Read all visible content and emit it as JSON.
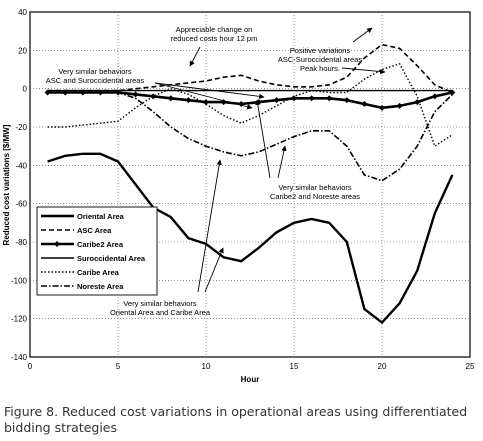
{
  "chart_data": {
    "type": "line",
    "title": "",
    "xlabel": "Hour",
    "ylabel": "Reduced cost variations [$/MW]",
    "xlim": [
      0,
      25
    ],
    "ylim": [
      -140,
      40
    ],
    "xticks": [
      0,
      5,
      10,
      15,
      20,
      25
    ],
    "yticks": [
      40,
      20,
      0,
      -20,
      -40,
      -60,
      -80,
      -100,
      -120,
      -140
    ],
    "grid": true,
    "legend_position": "center-left",
    "x": [
      1,
      2,
      3,
      4,
      5,
      6,
      7,
      8,
      9,
      10,
      11,
      12,
      13,
      14,
      15,
      16,
      17,
      18,
      19,
      20,
      21,
      22,
      23,
      24
    ],
    "series": [
      {
        "name": "Oriental Area",
        "style": "solid-thick",
        "values": [
          -38,
          -35,
          -34,
          -34,
          -38,
          -50,
          -62,
          -67,
          -78,
          -81,
          -88,
          -90,
          -83,
          -75,
          -70,
          -68,
          -70,
          -80,
          -115,
          -122,
          -112,
          -95,
          -65,
          -45
        ]
      },
      {
        "name": "ASC Area",
        "style": "dashed",
        "values": [
          -1,
          -1,
          -1,
          -1,
          -1,
          0,
          1,
          2,
          3,
          4,
          6,
          7,
          4,
          2,
          1,
          1,
          2,
          6,
          16,
          23,
          21,
          12,
          2,
          -2
        ]
      },
      {
        "name": "Caribe2 Area",
        "style": "diamond-solid",
        "values": [
          -2,
          -2,
          -2,
          -2,
          -2,
          -3,
          -4,
          -5,
          -6,
          -7,
          -7,
          -8,
          -7,
          -6,
          -5,
          -5,
          -5,
          -6,
          -8,
          -10,
          -9,
          -7,
          -4,
          -2
        ]
      },
      {
        "name": "Suroccidental Area",
        "style": "solid-thin",
        "values": [
          -1,
          -1,
          -1,
          -1,
          -1,
          -1,
          -1,
          -1,
          -1,
          -1,
          -1,
          -1,
          -1,
          -1,
          -1,
          -1,
          -1,
          -1,
          -1,
          -1,
          -1,
          -1,
          -1,
          -1
        ]
      },
      {
        "name": "Caribe Area",
        "style": "dotted",
        "values": [
          -20,
          -20,
          -19,
          -18,
          -17,
          -10,
          -4,
          0,
          -3,
          -8,
          -14,
          -18,
          -14,
          -9,
          -4,
          -1,
          -2,
          -2,
          5,
          10,
          13,
          -4,
          -30,
          -24
        ]
      },
      {
        "name": "Noreste Area",
        "style": "dash-dot",
        "values": [
          -2,
          -2,
          -2,
          -2,
          -2,
          -5,
          -12,
          -20,
          -26,
          -30,
          -33,
          -35,
          -33,
          -29,
          -25,
          -22,
          -22,
          -30,
          -45,
          -48,
          -42,
          -30,
          -12,
          -3
        ]
      }
    ],
    "annotations": [
      {
        "lines": [
          "Appreciable change on",
          "reduced costs hour 12 pm"
        ]
      },
      {
        "lines": [
          "Positive variations",
          "ASC-Suroccidental areas",
          "Peak hours."
        ]
      },
      {
        "lines": [
          "Very similar behaviors",
          "ASC and Suroccidental areas"
        ]
      },
      {
        "lines": [
          "Very similar behaviors",
          "Caribe2 and Noreste areas"
        ]
      },
      {
        "lines": [
          "Very similar behaviors",
          "Oriental Area and Caribe Area"
        ]
      }
    ]
  },
  "caption": "Figure 8. Reduced cost variations in operational areas using differentiated bidding strategies"
}
